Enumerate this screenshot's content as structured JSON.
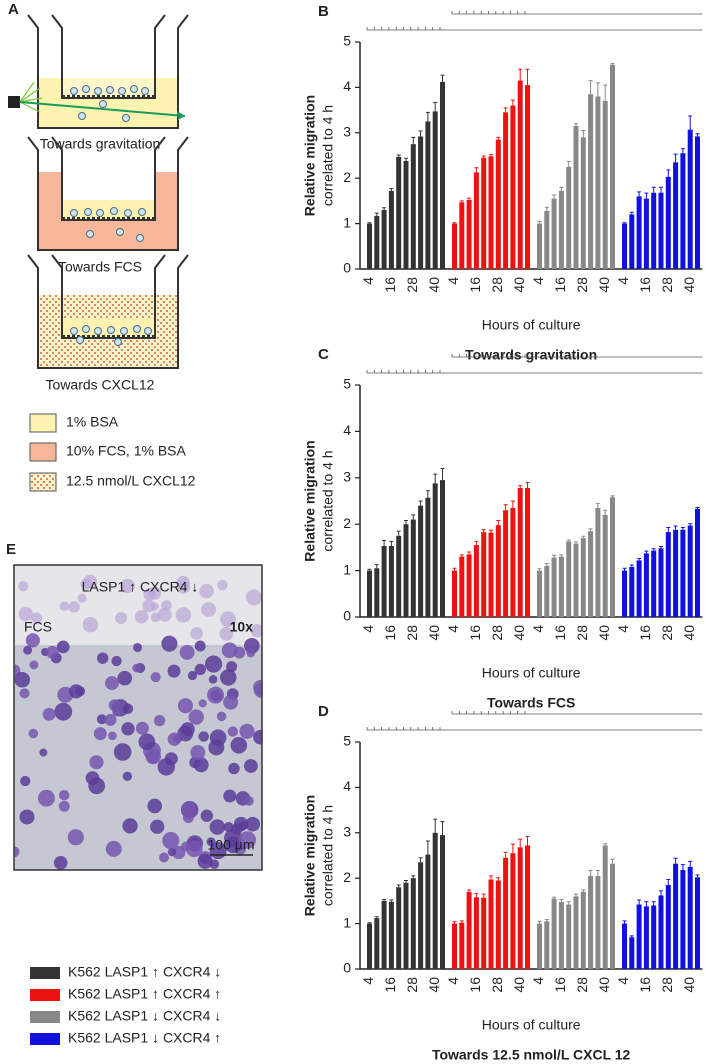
{
  "panels": {
    "a": {
      "label": "A",
      "wells": [
        "Towards gravitation",
        "Towards FCS",
        "Towards CXCL12"
      ],
      "legend": [
        "1% BSA",
        "10% FCS, 1% BSA",
        "12.5 nmol/L CXCL12"
      ]
    },
    "e": {
      "label": "E",
      "caption": "LASP1 ↑ CXCR4 ↓",
      "region": "FCS",
      "magnification": "10x",
      "scale_bar": "100 µm"
    }
  },
  "chart_data": [
    {
      "type": "bar",
      "label": "B",
      "title": "Towards gravitation",
      "y_label": "Relative migration",
      "y_sublabel": "correlated to 4 h",
      "x_label": "Hours of culture",
      "categories": [
        "4",
        null,
        null,
        "16",
        null,
        null,
        "28",
        null,
        null,
        "40",
        null
      ],
      "ylim": [
        0,
        5
      ],
      "yticks": [
        0,
        1,
        2,
        3,
        4,
        5
      ],
      "series": [
        {
          "name": "K562 LASP1 ↑ CXCR4 ↓",
          "color": "#333333",
          "values": [
            1.0,
            1.17,
            1.3,
            1.72,
            2.47,
            2.38,
            2.75,
            2.92,
            3.25,
            3.47,
            4.12
          ],
          "errors": [
            0.02,
            0.06,
            0.05,
            0.05,
            0.04,
            0.06,
            0.15,
            0.12,
            0.2,
            0.2,
            0.15
          ]
        },
        {
          "name": "K562 LASP1 ↑ CXCR4 ↑",
          "color": "#ee1111",
          "values": [
            1.0,
            1.47,
            1.52,
            2.13,
            2.45,
            2.48,
            2.85,
            3.45,
            3.6,
            4.15,
            4.05
          ],
          "errors": [
            0.02,
            0.03,
            0.04,
            0.1,
            0.04,
            0.04,
            0.05,
            0.1,
            0.12,
            0.25,
            0.35
          ]
        },
        {
          "name": "K562 LASP1 ↓ CXCR4 ↓",
          "color": "#888888",
          "values": [
            1.0,
            1.28,
            1.55,
            1.72,
            2.25,
            3.15,
            2.9,
            3.85,
            3.8,
            3.7,
            4.5
          ],
          "errors": [
            0.05,
            0.08,
            0.08,
            0.08,
            0.12,
            0.05,
            0.15,
            0.3,
            0.3,
            0.35,
            0.03
          ]
        },
        {
          "name": "K562 LASP1 ↓ CXCR4 ↑",
          "color": "#1111dd",
          "values": [
            1.0,
            1.2,
            1.6,
            1.55,
            1.68,
            1.68,
            2.03,
            2.35,
            2.55,
            3.07,
            2.92
          ],
          "errors": [
            0.02,
            0.05,
            0.1,
            0.12,
            0.12,
            0.12,
            0.15,
            0.18,
            0.1,
            0.3,
            0.06
          ]
        }
      ]
    },
    {
      "type": "bar",
      "label": "C",
      "title": "Towards FCS",
      "y_label": "Relative migration",
      "y_sublabel": "correlated to 4 h",
      "x_label": "Hours of culture",
      "categories": [
        "4",
        null,
        null,
        "16",
        null,
        null,
        "28",
        null,
        null,
        "40",
        null
      ],
      "ylim": [
        0,
        5
      ],
      "yticks": [
        0,
        1,
        2,
        3,
        4,
        5
      ],
      "series": [
        {
          "color": "#333333",
          "values": [
            1.0,
            1.05,
            1.53,
            1.53,
            1.75,
            2.0,
            2.1,
            2.4,
            2.57,
            2.88,
            2.95
          ],
          "errors": [
            0.03,
            0.08,
            0.12,
            0.1,
            0.1,
            0.08,
            0.1,
            0.1,
            0.15,
            0.2,
            0.25
          ]
        },
        {
          "color": "#ee1111",
          "values": [
            1.0,
            1.3,
            1.35,
            1.55,
            1.83,
            1.82,
            1.98,
            2.3,
            2.35,
            2.78,
            2.78
          ],
          "errors": [
            0.05,
            0.04,
            0.05,
            0.08,
            0.05,
            0.05,
            0.1,
            0.12,
            0.15,
            0.05,
            0.12
          ]
        },
        {
          "color": "#888888",
          "values": [
            1.0,
            1.1,
            1.28,
            1.3,
            1.63,
            1.58,
            1.7,
            1.85,
            2.35,
            2.2,
            2.58
          ],
          "errors": [
            0.04,
            0.05,
            0.05,
            0.04,
            0.03,
            0.04,
            0.04,
            0.05,
            0.1,
            0.1,
            0.03
          ]
        },
        {
          "color": "#1111dd",
          "values": [
            1.0,
            1.08,
            1.22,
            1.37,
            1.43,
            1.48,
            1.83,
            1.88,
            1.88,
            1.97,
            2.33
          ],
          "errors": [
            0.05,
            0.04,
            0.04,
            0.05,
            0.04,
            0.04,
            0.1,
            0.08,
            0.05,
            0.04,
            0.03
          ]
        }
      ]
    },
    {
      "type": "bar",
      "label": "D",
      "title": "Towards 12.5 nmol/L CXCL 12",
      "y_label": "Relative migration",
      "y_sublabel": "correlated to 4 h",
      "x_label": "Hours of culture",
      "categories": [
        "4",
        null,
        null,
        "16",
        null,
        null,
        "28",
        null,
        null,
        "40",
        null
      ],
      "ylim": [
        0,
        5
      ],
      "yticks": [
        0,
        1,
        2,
        3,
        4,
        5
      ],
      "series": [
        {
          "color": "#333333",
          "values": [
            1.0,
            1.12,
            1.5,
            1.48,
            1.8,
            1.9,
            2.0,
            2.35,
            2.52,
            3.0,
            2.95
          ],
          "errors": [
            0.02,
            0.03,
            0.03,
            0.04,
            0.05,
            0.05,
            0.05,
            0.1,
            0.3,
            0.3,
            0.3
          ]
        },
        {
          "color": "#ee1111",
          "values": [
            1.0,
            1.02,
            1.7,
            1.58,
            1.57,
            1.97,
            1.95,
            2.45,
            2.55,
            2.68,
            2.72
          ],
          "errors": [
            0.04,
            0.04,
            0.04,
            0.08,
            0.08,
            0.08,
            0.06,
            0.12,
            0.2,
            0.18,
            0.2
          ]
        },
        {
          "color": "#888888",
          "values": [
            1.0,
            1.05,
            1.55,
            1.48,
            1.42,
            1.6,
            1.7,
            2.05,
            2.05,
            2.72,
            2.32
          ],
          "errors": [
            0.05,
            0.04,
            0.03,
            0.05,
            0.06,
            0.05,
            0.04,
            0.12,
            0.12,
            0.04,
            0.1
          ]
        },
        {
          "color": "#1111dd",
          "values": [
            1.0,
            0.7,
            1.42,
            1.38,
            1.4,
            1.62,
            1.85,
            2.32,
            2.18,
            2.25,
            2.02
          ],
          "errors": [
            0.06,
            0.03,
            0.1,
            0.1,
            0.08,
            0.1,
            0.12,
            0.12,
            0.12,
            0.12,
            0.05
          ]
        }
      ]
    }
  ]
}
